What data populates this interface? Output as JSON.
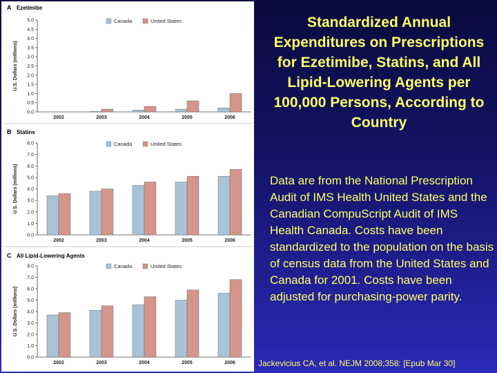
{
  "slide": {
    "title": "Standardized Annual Expenditures on Prescriptions for Ezetimibe, Statins, and All Lipid-Lowering Agents per 100,000 Persons, According to Country",
    "body": "Data are from the National Prescription Audit of IMS Health United States and the Canadian CompuScript Audit of IMS Health Canada. Costs have been standardized to the population on the basis of census data from the United States and Canada for 2001. Costs have been adjusted for purchasing-power parity.",
    "citation": "Jackevicius CA, et al. NEJM 2008;358: [Epub Mar 30]",
    "colors": {
      "canada": "#a9c3d6",
      "united_states": "#d4958a",
      "text": "#ffff66"
    }
  },
  "chart_data": [
    {
      "type": "bar",
      "panel": "A",
      "title": "Ezetimibe",
      "ylabel": "U.S. Dollars (millions)",
      "xlabel": "",
      "ylim": [
        0,
        5.0
      ],
      "yticks": [
        "0.0",
        "0.5",
        "1.0",
        "1.5",
        "2.0",
        "2.5",
        "3.0",
        "3.5",
        "4.0",
        "4.5",
        "5.0"
      ],
      "categories": [
        "2002",
        "2003",
        "2004",
        "2005",
        "2006"
      ],
      "series": [
        {
          "name": "Canada",
          "values": [
            0,
            0.02,
            0.1,
            0.15,
            0.22
          ]
        },
        {
          "name": "United States",
          "values": [
            0,
            0.15,
            0.3,
            0.6,
            1.0
          ]
        }
      ],
      "legend": "top-center",
      "grid": false
    },
    {
      "type": "bar",
      "panel": "B",
      "title": "Statins",
      "ylabel": "U.S. Dollars (millions)",
      "xlabel": "",
      "ylim": [
        0,
        8.0
      ],
      "yticks": [
        "0.0",
        "1.0",
        "2.0",
        "3.0",
        "4.0",
        "5.0",
        "6.0",
        "7.0",
        "8.0"
      ],
      "categories": [
        "2002",
        "2003",
        "2004",
        "2005",
        "2006"
      ],
      "series": [
        {
          "name": "Canada",
          "values": [
            3.4,
            3.8,
            4.3,
            4.6,
            5.1
          ]
        },
        {
          "name": "United States",
          "values": [
            3.6,
            4.0,
            4.6,
            5.1,
            5.7
          ]
        }
      ],
      "legend": "top-center",
      "grid": false
    },
    {
      "type": "bar",
      "panel": "C",
      "title": "All Lipid-Lowering Agents",
      "ylabel": "U.S. Dollars (millions)",
      "xlabel": "",
      "ylim": [
        0,
        8.0
      ],
      "yticks": [
        "0.0",
        "1.0",
        "2.0",
        "3.0",
        "4.0",
        "5.0",
        "6.0",
        "7.0",
        "8.0"
      ],
      "categories": [
        "2002",
        "2003",
        "2004",
        "2005",
        "2006"
      ],
      "series": [
        {
          "name": "Canada",
          "values": [
            3.7,
            4.1,
            4.6,
            5.0,
            5.6
          ]
        },
        {
          "name": "United States",
          "values": [
            3.9,
            4.5,
            5.3,
            5.9,
            6.8
          ]
        }
      ],
      "legend": "top-center",
      "grid": false
    }
  ]
}
